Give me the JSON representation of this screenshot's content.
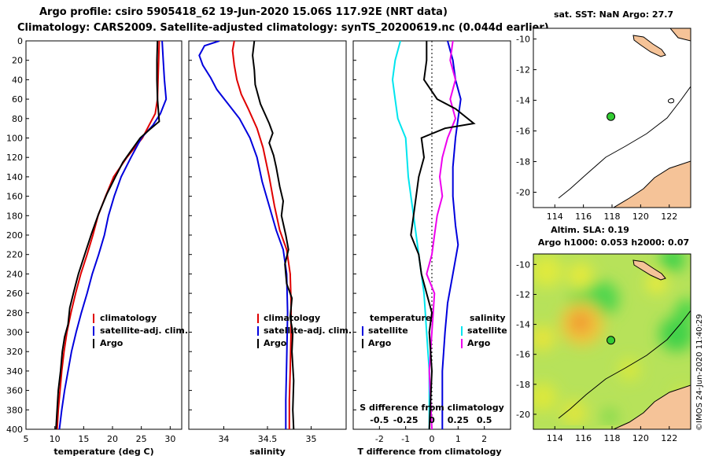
{
  "header": {
    "line1": "Argo profile: csiro 5905418_62 19-Jun-2020 15.06S 117.92E (NRT data)",
    "line2": "Climatology: CARS2009. Satellite-adjusted climatology: synTS_20200619.nc (0.044d earlier)"
  },
  "credit": "©IMOS 24-Jun-2020 11:40:29",
  "colors": {
    "clim": "#e00000",
    "sat": "#0000dd",
    "argo": "#000000",
    "sal_diff": "#ee00ee",
    "sat_sal": "#00e5ee",
    "land": "#f5c398"
  },
  "chart_data": [
    {
      "type": "line",
      "name": "temperature-profile",
      "xlabel": "temperature (deg C)",
      "xlim": [
        5,
        32
      ],
      "ylim": [
        0,
        400
      ],
      "xticks": [
        5,
        10,
        15,
        20,
        25,
        30
      ],
      "yticks": [
        0,
        20,
        40,
        60,
        80,
        100,
        120,
        140,
        160,
        180,
        200,
        220,
        240,
        260,
        280,
        300,
        320,
        340,
        360,
        380,
        400
      ],
      "legend": [
        "climatology",
        "satellite-adj. clim.",
        "Argo"
      ],
      "series": [
        {
          "name": "climatology",
          "color": "#e00000",
          "points": [
            [
              28.1,
              0
            ],
            [
              28.0,
              20
            ],
            [
              27.9,
              40
            ],
            [
              27.8,
              60
            ],
            [
              27.4,
              75
            ],
            [
              26.5,
              85
            ],
            [
              25.2,
              100
            ],
            [
              22.5,
              120
            ],
            [
              20.2,
              140
            ],
            [
              18.8,
              160
            ],
            [
              17.5,
              180
            ],
            [
              16.6,
              200
            ],
            [
              15.6,
              220
            ],
            [
              14.5,
              240
            ],
            [
              13.6,
              260
            ],
            [
              12.8,
              280
            ],
            [
              12.1,
              300
            ],
            [
              11.6,
              320
            ],
            [
              11.2,
              340
            ],
            [
              10.9,
              360
            ],
            [
              10.6,
              380
            ],
            [
              10.4,
              400
            ]
          ]
        },
        {
          "name": "satellite-adj. clim.",
          "color": "#0000dd",
          "points": [
            [
              28.6,
              0
            ],
            [
              28.8,
              20
            ],
            [
              29.0,
              40
            ],
            [
              29.3,
              60
            ],
            [
              28.3,
              75
            ],
            [
              27.0,
              87
            ],
            [
              25.0,
              100
            ],
            [
              23.2,
              120
            ],
            [
              21.5,
              140
            ],
            [
              20.3,
              160
            ],
            [
              19.3,
              180
            ],
            [
              18.6,
              200
            ],
            [
              17.6,
              220
            ],
            [
              16.5,
              240
            ],
            [
              15.6,
              260
            ],
            [
              14.6,
              280
            ],
            [
              13.7,
              300
            ],
            [
              12.9,
              320
            ],
            [
              12.3,
              340
            ],
            [
              11.7,
              360
            ],
            [
              11.2,
              380
            ],
            [
              10.8,
              400
            ]
          ]
        },
        {
          "name": "Argo",
          "color": "#000000",
          "points": [
            [
              27.8,
              0
            ],
            [
              27.7,
              20
            ],
            [
              27.7,
              40
            ],
            [
              27.8,
              60
            ],
            [
              28.1,
              83
            ],
            [
              26.3,
              92
            ],
            [
              24.8,
              100
            ],
            [
              23.0,
              115
            ],
            [
              21.8,
              125
            ],
            [
              20.5,
              140
            ],
            [
              19.0,
              158
            ],
            [
              17.6,
              178
            ],
            [
              16.4,
              198
            ],
            [
              15.3,
              218
            ],
            [
              14.1,
              240
            ],
            [
              13.3,
              258
            ],
            [
              12.6,
              275
            ],
            [
              12.3,
              292
            ],
            [
              11.7,
              305
            ],
            [
              11.3,
              320
            ],
            [
              11.0,
              340
            ],
            [
              10.6,
              360
            ],
            [
              10.4,
              380
            ],
            [
              10.2,
              400
            ]
          ]
        }
      ]
    },
    {
      "type": "line",
      "name": "salinity-profile",
      "xlabel": "salinity",
      "xlim": [
        33.6,
        35.4
      ],
      "ylim": [
        0,
        400
      ],
      "xticks": [
        34,
        34.5,
        35
      ],
      "xtick_labels": [
        "34",
        "34.5",
        "35"
      ],
      "legend": [
        "climatology",
        "satellite-adj. clim.",
        "Argo"
      ],
      "series": [
        {
          "name": "climatology",
          "color": "#e00000",
          "points": [
            [
              34.12,
              0
            ],
            [
              34.1,
              10
            ],
            [
              34.12,
              25
            ],
            [
              34.15,
              40
            ],
            [
              34.2,
              55
            ],
            [
              34.28,
              70
            ],
            [
              34.38,
              90
            ],
            [
              34.45,
              110
            ],
            [
              34.52,
              140
            ],
            [
              34.58,
              170
            ],
            [
              34.64,
              195
            ],
            [
              34.72,
              215
            ],
            [
              34.76,
              240
            ],
            [
              34.77,
              270
            ],
            [
              34.77,
              300
            ],
            [
              34.76,
              340
            ],
            [
              34.75,
              370
            ],
            [
              34.75,
              400
            ]
          ]
        },
        {
          "name": "satellite-adj. clim.",
          "color": "#0000dd",
          "points": [
            [
              33.95,
              0
            ],
            [
              33.78,
              5
            ],
            [
              33.72,
              15
            ],
            [
              33.76,
              25
            ],
            [
              33.85,
              38
            ],
            [
              33.92,
              50
            ],
            [
              34.05,
              65
            ],
            [
              34.18,
              80
            ],
            [
              34.3,
              100
            ],
            [
              34.38,
              120
            ],
            [
              34.44,
              145
            ],
            [
              34.52,
              170
            ],
            [
              34.6,
              195
            ],
            [
              34.68,
              215
            ],
            [
              34.72,
              240
            ],
            [
              34.73,
              280
            ],
            [
              34.72,
              330
            ],
            [
              34.71,
              370
            ],
            [
              34.71,
              400
            ]
          ]
        },
        {
          "name": "Argo",
          "color": "#000000",
          "points": [
            [
              34.35,
              0
            ],
            [
              34.33,
              15
            ],
            [
              34.35,
              30
            ],
            [
              34.36,
              45
            ],
            [
              34.42,
              65
            ],
            [
              34.52,
              85
            ],
            [
              34.56,
              95
            ],
            [
              34.52,
              105
            ],
            [
              34.57,
              118
            ],
            [
              34.6,
              130
            ],
            [
              34.64,
              150
            ],
            [
              34.68,
              165
            ],
            [
              34.66,
              180
            ],
            [
              34.71,
              200
            ],
            [
              34.74,
              215
            ],
            [
              34.7,
              230
            ],
            [
              34.72,
              250
            ],
            [
              34.78,
              265
            ],
            [
              34.76,
              285
            ],
            [
              34.79,
              300
            ],
            [
              34.78,
              320
            ],
            [
              34.8,
              350
            ],
            [
              34.79,
              380
            ],
            [
              34.8,
              400
            ]
          ]
        }
      ]
    },
    {
      "type": "line",
      "name": "difference-profile",
      "xlabel": "T difference from climatology",
      "xlim": [
        -3,
        3
      ],
      "ylim": [
        0,
        400
      ],
      "xticks": [
        -2,
        -1,
        0,
        1,
        2
      ],
      "top_axis_label": "S difference from climatology",
      "top_ticks": [
        -0.5,
        -0.25,
        0,
        0.25,
        0.5
      ],
      "top_tick_labels": [
        "-0.5",
        "-0.25",
        "0",
        "0.25",
        "0.5"
      ],
      "legend_left_title": "temperature",
      "legend_right_title": "salinity",
      "legend": [
        "satellite",
        "Argo",
        "satellite",
        "Argo"
      ],
      "series": [
        {
          "name": "T satellite",
          "color": "#0000dd",
          "points": [
            [
              0.6,
              0
            ],
            [
              0.8,
              20
            ],
            [
              0.9,
              40
            ],
            [
              1.1,
              60
            ],
            [
              1.0,
              80
            ],
            [
              0.9,
              100
            ],
            [
              0.8,
              130
            ],
            [
              0.8,
              160
            ],
            [
              0.9,
              190
            ],
            [
              1.0,
              210
            ],
            [
              0.8,
              240
            ],
            [
              0.6,
              270
            ],
            [
              0.5,
              300
            ],
            [
              0.4,
              340
            ],
            [
              0.4,
              400
            ]
          ]
        },
        {
          "name": "T Argo",
          "color": "#000000",
          "points": [
            [
              -0.2,
              0
            ],
            [
              -0.2,
              20
            ],
            [
              -0.3,
              40
            ],
            [
              0.2,
              60
            ],
            [
              0.9,
              70
            ],
            [
              1.6,
              85
            ],
            [
              0.5,
              90
            ],
            [
              -0.4,
              100
            ],
            [
              -0.3,
              120
            ],
            [
              -0.5,
              140
            ],
            [
              -0.6,
              160
            ],
            [
              -0.7,
              180
            ],
            [
              -0.8,
              200
            ],
            [
              -0.5,
              220
            ],
            [
              -0.4,
              240
            ],
            [
              -0.2,
              260
            ],
            [
              0.0,
              280
            ],
            [
              -0.1,
              300
            ],
            [
              0.0,
              340
            ],
            [
              -0.1,
              400
            ]
          ]
        },
        {
          "name": "S satellite",
          "color": "#00e5ee",
          "points": [
            [
              -1.2,
              0
            ],
            [
              -1.4,
              20
            ],
            [
              -1.5,
              40
            ],
            [
              -1.4,
              60
            ],
            [
              -1.3,
              80
            ],
            [
              -1.0,
              100
            ],
            [
              -0.9,
              140
            ],
            [
              -0.7,
              180
            ],
            [
              -0.5,
              220
            ],
            [
              -0.3,
              260
            ],
            [
              -0.2,
              300
            ],
            [
              -0.1,
              340
            ],
            [
              -0.1,
              400
            ]
          ]
        },
        {
          "name": "S Argo",
          "color": "#ee00ee",
          "points": [
            [
              0.8,
              0
            ],
            [
              0.7,
              20
            ],
            [
              0.9,
              40
            ],
            [
              0.7,
              60
            ],
            [
              0.9,
              80
            ],
            [
              0.6,
              100
            ],
            [
              0.4,
              120
            ],
            [
              0.3,
              140
            ],
            [
              0.4,
              160
            ],
            [
              0.2,
              180
            ],
            [
              0.1,
              200
            ],
            [
              0.0,
              220
            ],
            [
              -0.2,
              240
            ],
            [
              0.1,
              260
            ],
            [
              0.0,
              300
            ],
            [
              -0.1,
              340
            ],
            [
              0.0,
              400
            ]
          ]
        }
      ]
    },
    {
      "type": "scatter",
      "name": "sst-map",
      "title": "sat. SST: NaN Argo: 27.7",
      "xlim": [
        112.5,
        123.5
      ],
      "ylim": [
        -21,
        -9.3
      ],
      "xticks": [
        114,
        116,
        118,
        120,
        122
      ],
      "yticks": [
        -10,
        -12,
        -14,
        -16,
        -18,
        -20
      ],
      "point": {
        "lon": 117.92,
        "lat": -15.06
      }
    },
    {
      "type": "heatmap",
      "name": "sla-map",
      "title": "Altim. SLA: 0.19",
      "subtitle": "Argo h1000: 0.053 h2000: 0.07",
      "xlim": [
        112.5,
        123.5
      ],
      "ylim": [
        -21,
        -9.3
      ],
      "xticks": [
        114,
        116,
        118,
        120,
        122
      ],
      "yticks": [
        -10,
        -12,
        -14,
        -16,
        -18,
        -20
      ],
      "point": {
        "lon": 117.92,
        "lat": -15.06
      }
    }
  ]
}
